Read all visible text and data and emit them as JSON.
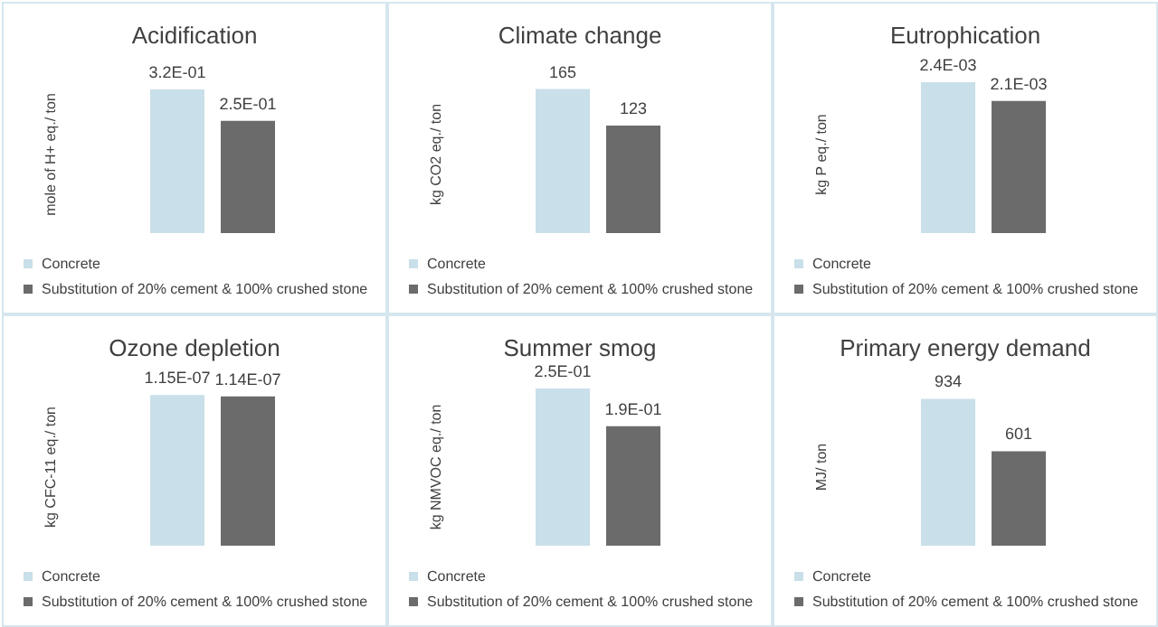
{
  "chart_data": [
    {
      "type": "bar",
      "title": "Acidification",
      "ylabel": "mole of H+ eq./ ton",
      "categories": [
        null
      ],
      "legend": "bottom left",
      "tick_labels": false,
      "series": [
        {
          "name": "Concrete",
          "color": "#c9dfe9",
          "values": [
            0.32
          ],
          "value_labels": [
            "3.2E-01"
          ]
        },
        {
          "name": "Substitution of 20% cement & 100% crushed stone",
          "color": "#6b6b6b",
          "values": [
            0.25
          ],
          "value_labels": [
            "2.5E-01"
          ]
        }
      ]
    },
    {
      "type": "bar",
      "title": "Climate change",
      "ylabel": "kg CO2 eq./ ton",
      "categories": [
        null
      ],
      "legend": "bottom left",
      "tick_labels": false,
      "series": [
        {
          "name": "Concrete",
          "color": "#c9dfe9",
          "values": [
            165
          ],
          "value_labels": [
            "165"
          ]
        },
        {
          "name": "Substitution of 20% cement & 100% crushed stone",
          "color": "#6b6b6b",
          "values": [
            123
          ],
          "value_labels": [
            "123"
          ]
        }
      ]
    },
    {
      "type": "bar",
      "title": "Eutrophication",
      "ylabel": "kg P eq./ ton",
      "categories": [
        null
      ],
      "legend": "bottom left",
      "tick_labels": false,
      "series": [
        {
          "name": "Concrete",
          "color": "#c9dfe9",
          "values": [
            0.0024
          ],
          "value_labels": [
            "2.4E-03"
          ]
        },
        {
          "name": "Substitution of 20% cement & 100% crushed stone",
          "color": "#6b6b6b",
          "values": [
            0.0021
          ],
          "value_labels": [
            "2.1E-03"
          ]
        }
      ]
    },
    {
      "type": "bar",
      "title": "Ozone depletion",
      "ylabel": "kg CFC-11 eq./ ton",
      "categories": [
        null
      ],
      "legend": "bottom left",
      "tick_labels": false,
      "series": [
        {
          "name": "Concrete",
          "color": "#c9dfe9",
          "values": [
            1.15e-07
          ],
          "value_labels": [
            "1.15E-07"
          ]
        },
        {
          "name": "Substitution of 20% cement & 100% crushed stone",
          "color": "#6b6b6b",
          "values": [
            1.14e-07
          ],
          "value_labels": [
            "1.14E-07"
          ]
        }
      ]
    },
    {
      "type": "bar",
      "title": "Summer smog",
      "ylabel": "kg NMVOC eq./ ton",
      "categories": [
        null
      ],
      "legend": "bottom left",
      "tick_labels": false,
      "series": [
        {
          "name": "Concrete",
          "color": "#c9dfe9",
          "values": [
            0.25
          ],
          "value_labels": [
            "2.5E-01"
          ]
        },
        {
          "name": "Substitution of 20% cement & 100% crushed stone",
          "color": "#6b6b6b",
          "values": [
            0.19
          ],
          "value_labels": [
            "1.9E-01"
          ]
        }
      ]
    },
    {
      "type": "bar",
      "title": "Primary energy demand",
      "ylabel": "MJ/ ton",
      "categories": [
        null
      ],
      "legend": "bottom left",
      "tick_labels": false,
      "series": [
        {
          "name": "Concrete",
          "color": "#c9dfe9",
          "values": [
            934
          ],
          "value_labels": [
            "934"
          ]
        },
        {
          "name": "Substitution of 20% cement & 100% crushed stone",
          "color": "#6b6b6b",
          "values": [
            601
          ],
          "value_labels": [
            "601"
          ]
        }
      ]
    }
  ]
}
